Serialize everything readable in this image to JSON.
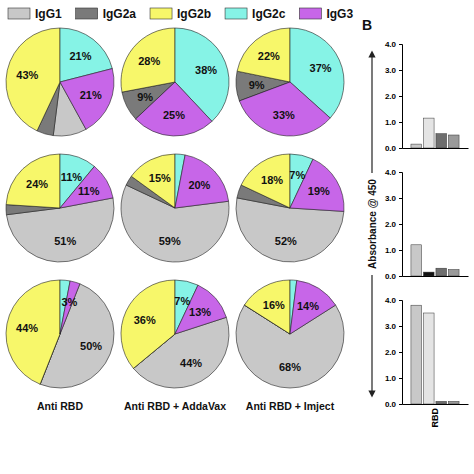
{
  "chart_data": [
    {
      "type": "pie",
      "legend": "top",
      "categories": [
        "IgG1",
        "IgG2a",
        "IgG2b",
        "IgG2c",
        "IgG3"
      ],
      "values": [
        10,
        5,
        43,
        21,
        21
      ],
      "value_labels": [
        null,
        null,
        "43%",
        "21%",
        "21%"
      ],
      "colors": [
        "#c8c8c8",
        "#7a7a7a",
        "#f7f76a",
        "#86f3e6",
        "#c766e8"
      ],
      "data_labels": true
    },
    {
      "type": "pie",
      "values": [
        0,
        9,
        28,
        38,
        25
      ],
      "value_labels": [
        null,
        "9%",
        "28%",
        "38%",
        "25%"
      ],
      "colors": [
        "#c8c8c8",
        "#7a7a7a",
        "#f7f76a",
        "#86f3e6",
        "#c766e8"
      ],
      "data_labels": true
    },
    {
      "type": "pie",
      "values": [
        0,
        9,
        22,
        37,
        33
      ],
      "value_labels": [
        null,
        "9%",
        "22%",
        "37%",
        "33%"
      ],
      "colors": [
        "#c8c8c8",
        "#7a7a7a",
        "#f7f76a",
        "#86f3e6",
        "#c766e8"
      ],
      "data_labels": true
    },
    {
      "type": "pie",
      "values": [
        51,
        3,
        24,
        11,
        11
      ],
      "value_labels": [
        "51%",
        null,
        "24%",
        "11%",
        "11%"
      ],
      "colors": [
        "#c8c8c8",
        "#7a7a7a",
        "#f7f76a",
        "#86f3e6",
        "#c766e8"
      ],
      "data_labels": true
    },
    {
      "type": "pie",
      "values": [
        59,
        3,
        15,
        3,
        20
      ],
      "value_labels": [
        "59%",
        null,
        "15%",
        null,
        "20%"
      ],
      "colors": [
        "#c8c8c8",
        "#7a7a7a",
        "#f7f76a",
        "#86f3e6",
        "#c766e8"
      ],
      "data_labels": true
    },
    {
      "type": "pie",
      "values": [
        52,
        4,
        18,
        7,
        19
      ],
      "value_labels": [
        "52%",
        null,
        "18%",
        "7%",
        "19%"
      ],
      "colors": [
        "#c8c8c8",
        "#7a7a7a",
        "#f7f76a",
        "#86f3e6",
        "#c766e8"
      ],
      "data_labels": true
    },
    {
      "type": "pie",
      "title": "Anti RBD",
      "values": [
        50,
        0,
        44,
        3,
        3
      ],
      "value_labels": [
        "50%",
        null,
        "44%",
        null,
        "3%"
      ],
      "colors": [
        "#c8c8c8",
        "#7a7a7a",
        "#f7f76a",
        "#86f3e6",
        "#c766e8"
      ],
      "data_labels": true
    },
    {
      "type": "pie",
      "title": "Anti RBD + AddaVax",
      "values": [
        44,
        0,
        36,
        7,
        13
      ],
      "value_labels": [
        "44%",
        null,
        "36%",
        "7%",
        "13%"
      ],
      "colors": [
        "#c8c8c8",
        "#7a7a7a",
        "#f7f76a",
        "#86f3e6",
        "#c766e8"
      ],
      "data_labels": true
    },
    {
      "type": "pie",
      "title": "Anti RBD + Imject",
      "values": [
        68,
        0,
        16,
        2,
        14
      ],
      "value_labels": [
        "68%",
        null,
        "16%",
        null,
        "14%"
      ],
      "colors": [
        "#c8c8c8",
        "#7a7a7a",
        "#f7f76a",
        "#86f3e6",
        "#c766e8"
      ],
      "data_labels": true
    },
    {
      "type": "bar",
      "title": "B",
      "categories": [
        "RBD"
      ],
      "tick_labels": "y",
      "series": [
        {
          "color": "#c8c8c8",
          "values": [
            0.15
          ]
        },
        {
          "color": "#e4e4e4",
          "values": [
            1.15
          ]
        },
        {
          "color": "#6e6e6e",
          "values": [
            0.55
          ]
        },
        {
          "color": "#9a9a9a",
          "values": [
            0.5
          ]
        }
      ],
      "ylim": [
        0,
        4
      ],
      "yticks": [
        {
          "value": 0,
          "label": "0.0"
        },
        {
          "value": 1,
          "label": "1.0"
        },
        {
          "value": 2,
          "label": "2.0"
        },
        {
          "value": 3,
          "label": "3.0"
        },
        {
          "value": 4,
          "label": "4.0"
        }
      ]
    },
    {
      "type": "bar",
      "categories": [
        "RBD"
      ],
      "tick_labels": "y",
      "y_label": "Absorbance @ 450",
      "series": [
        {
          "color": "#c8c8c8",
          "values": [
            1.2
          ]
        },
        {
          "color": "#111111",
          "values": [
            0.15
          ]
        },
        {
          "color": "#6e6e6e",
          "values": [
            0.3
          ]
        },
        {
          "color": "#9a9a9a",
          "values": [
            0.25
          ]
        }
      ],
      "ylim": [
        0,
        4
      ],
      "yticks": [
        {
          "value": 0,
          "label": "0.0"
        },
        {
          "value": 1,
          "label": "1.0"
        },
        {
          "value": 2,
          "label": "2.0"
        },
        {
          "value": 3,
          "label": "3.0"
        },
        {
          "value": 4,
          "label": "4.0"
        }
      ]
    },
    {
      "type": "bar",
      "categories": [
        "RBD"
      ],
      "series": [
        {
          "color": "#c8c8c8",
          "values": [
            3.8
          ]
        },
        {
          "color": "#e4e4e4",
          "values": [
            3.5
          ]
        },
        {
          "color": "#6e6e6e",
          "values": [
            0.1
          ]
        },
        {
          "color": "#9a9a9a",
          "values": [
            0.1
          ]
        }
      ],
      "ylim": [
        0,
        4
      ],
      "yticks": [
        {
          "value": 0,
          "label": "0.0"
        },
        {
          "value": 1,
          "label": "1.0"
        },
        {
          "value": 2,
          "label": "2.0"
        },
        {
          "value": 3,
          "label": "3.0"
        },
        {
          "value": 4,
          "label": "4.0"
        }
      ]
    }
  ]
}
